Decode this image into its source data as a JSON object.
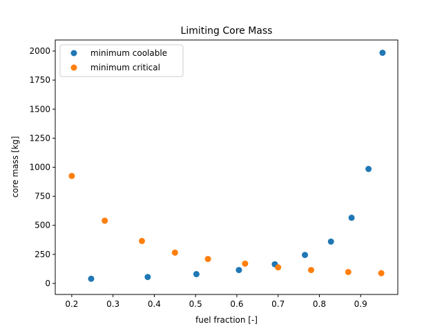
{
  "chart_data": {
    "type": "scatter",
    "title": "Limiting Core Mass",
    "xlabel": "fuel fraction [-]",
    "ylabel": "core mass [kg]",
    "xlim": [
      0.16,
      0.99
    ],
    "ylim": [
      -95,
      2095
    ],
    "xticks": [
      0.2,
      0.3,
      0.4,
      0.5,
      0.6,
      0.7,
      0.8,
      0.9
    ],
    "xtick_labels": [
      "0.2",
      "0.3",
      "0.4",
      "0.5",
      "0.6",
      "0.7",
      "0.8",
      "0.9"
    ],
    "yticks": [
      0,
      250,
      500,
      750,
      1000,
      1250,
      1500,
      1750,
      2000
    ],
    "ytick_labels": [
      "0",
      "250",
      "500",
      "750",
      "1000",
      "1250",
      "1500",
      "1750",
      "2000"
    ],
    "grid": false,
    "legend_position": "top-left",
    "series": [
      {
        "name": "minimum coolable",
        "color": "#1f77b4",
        "x": [
          0.247,
          0.384,
          0.502,
          0.605,
          0.692,
          0.765,
          0.828,
          0.878,
          0.919,
          0.953
        ],
        "y": [
          40,
          55,
          80,
          115,
          165,
          245,
          360,
          565,
          985,
          1985
        ]
      },
      {
        "name": "minimum critical",
        "color": "#ff7f0e",
        "x": [
          0.2,
          0.28,
          0.37,
          0.45,
          0.53,
          0.62,
          0.7,
          0.78,
          0.87,
          0.95
        ],
        "y": [
          925,
          540,
          365,
          265,
          210,
          170,
          138,
          115,
          98,
          88
        ]
      }
    ]
  }
}
